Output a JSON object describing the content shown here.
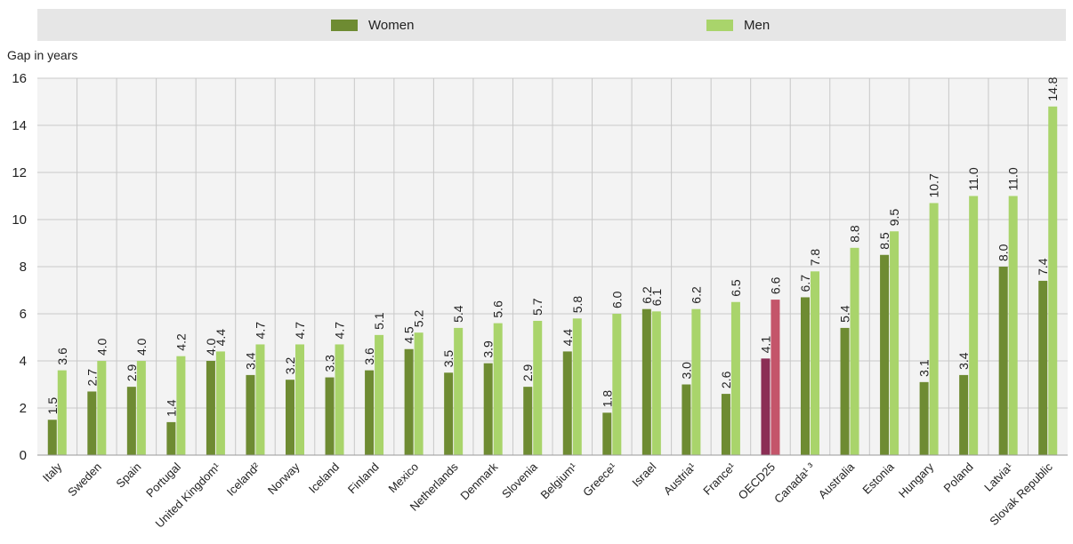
{
  "chart_data": {
    "type": "bar",
    "ylabel": "Gap in years",
    "ylim": [
      0,
      16
    ],
    "yticks": [
      0,
      2,
      4,
      6,
      8,
      10,
      12,
      14,
      16
    ],
    "grid": true,
    "legend_position": "top",
    "categories": [
      "Italy",
      "Sweden",
      "Spain",
      "Portugal",
      "United Kingdom¹",
      "Iceland²",
      "Norway",
      "Iceland",
      "Finland",
      "Mexico",
      "Netherlands",
      "Denmark",
      "Slovenia",
      "Belgium¹",
      "Greece¹",
      "Israel",
      "Austria¹",
      "France¹",
      "OECD25",
      "Canada¹ ³",
      "Australia",
      "Estonia",
      "Hungary",
      "Poland",
      "Latvia¹",
      "Slovak Republic"
    ],
    "series": [
      {
        "name": "Women",
        "color": "#6e8b32",
        "values": [
          1.5,
          2.7,
          2.9,
          1.4,
          4.0,
          3.4,
          3.2,
          3.3,
          3.6,
          4.5,
          3.5,
          3.9,
          2.9,
          4.4,
          1.8,
          6.2,
          3.0,
          2.6,
          4.1,
          6.7,
          5.4,
          8.5,
          3.1,
          3.4,
          8.0,
          7.4
        ],
        "labels": [
          "1.5",
          "2.7",
          "2.9",
          "1.4",
          "4.0",
          "3.4",
          "3.2",
          "3.3",
          "3.6",
          "4.5",
          "3.5",
          "3.9",
          "2.9",
          "4.4",
          "1.8",
          "6.2",
          "3.0",
          "2.6",
          "4.1",
          "6.7",
          "5.4",
          "8.5",
          "3.1",
          "3.4",
          "8.0",
          "7.4"
        ]
      },
      {
        "name": "Men",
        "color": "#a9d46b",
        "values": [
          3.6,
          4.0,
          4.0,
          4.2,
          4.4,
          4.7,
          4.7,
          4.7,
          5.1,
          5.2,
          5.4,
          5.6,
          5.7,
          5.8,
          6.0,
          6.1,
          6.2,
          6.5,
          6.6,
          7.8,
          8.8,
          9.5,
          10.7,
          11.0,
          11.0,
          14.8
        ],
        "labels": [
          "3.6",
          "4.0",
          "4.0",
          "4.2",
          "4.4",
          "4.7",
          "4.7",
          "4.7",
          "5.1",
          "5.2",
          "5.4",
          "5.6",
          "5.7",
          "5.8",
          "6.0",
          "6.1",
          "6.2",
          "6.5",
          "6.6",
          "7.8",
          "8.8",
          "9.5",
          "10.7",
          "11.0",
          "11.0",
          "14.8"
        ]
      }
    ],
    "highlight": {
      "category": "OECD25",
      "women_color": "#8b2e55",
      "men_color": "#c4556a"
    },
    "grid_color": "#c8c8c8"
  }
}
